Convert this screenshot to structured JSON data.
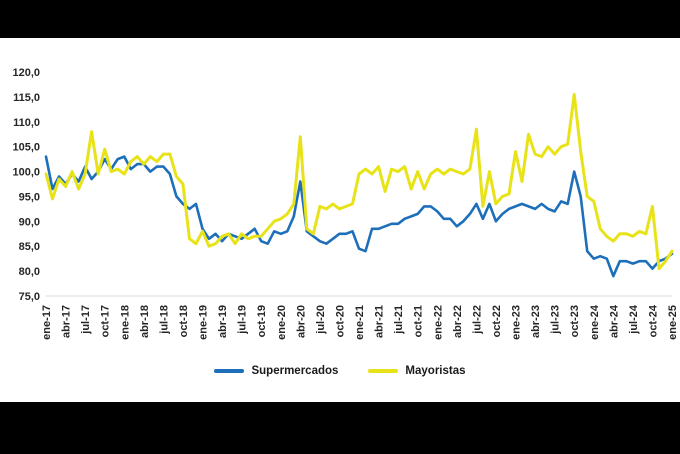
{
  "frame": {
    "top_bar_color": "#000000",
    "bottom_bar_color": "#000000",
    "chart_background": "#ffffff"
  },
  "chart_data": {
    "type": "line",
    "title": "",
    "xlabel": "",
    "ylabel": "",
    "ylim": [
      75,
      120
    ],
    "y_step": 5,
    "grid": false,
    "legend_position": "bottom",
    "y_tick_labels": [
      "75,0",
      "80,0",
      "85,0",
      "90,0",
      "95,0",
      "100,0",
      "105,0",
      "110,0",
      "115,0",
      "120,0"
    ],
    "tick_interval": 3,
    "x_tick_labels": [
      "ene-17",
      "abr-17",
      "jul-17",
      "oct-17",
      "ene-18",
      "abr-18",
      "jul-18",
      "oct-18",
      "ene-19",
      "abr-19",
      "jul-19",
      "oct-19",
      "ene-20",
      "abr-20",
      "jul-20",
      "oct-20",
      "ene-21",
      "abr-21",
      "jul-21",
      "oct-21",
      "ene-22",
      "abr-22",
      "jul-22",
      "oct-22",
      "ene-23",
      "abr-23",
      "jul-23",
      "oct-23",
      "ene-24",
      "abr-24",
      "jul-24",
      "oct-24",
      "ene-25"
    ],
    "series": [
      {
        "name": "Supermercados",
        "color": "#1E6FBA",
        "width": 2.6,
        "values": [
          103,
          96.5,
          99,
          97.5,
          99.5,
          98,
          101,
          98.5,
          100,
          102.5,
          100.5,
          102.5,
          103,
          100.5,
          101.5,
          101.5,
          100,
          101,
          101,
          99.5,
          95,
          93.5,
          92.5,
          93.5,
          88.5,
          86.5,
          87.5,
          86,
          87.5,
          87,
          86.5,
          87.5,
          88.5,
          86,
          85.5,
          88,
          87.5,
          88,
          91,
          98,
          88,
          87,
          86,
          85.5,
          86.5,
          87.5,
          87.5,
          88,
          84.5,
          84,
          88.5,
          88.5,
          89,
          89.5,
          89.5,
          90.5,
          91,
          91.5,
          93,
          93,
          92,
          90.5,
          90.5,
          89,
          90,
          91.5,
          93.5,
          90.5,
          93.5,
          90,
          91.5,
          92.5,
          93,
          93.5,
          93,
          92.5,
          93.5,
          92.5,
          92,
          94,
          93.5,
          100,
          95,
          84,
          82.5,
          83,
          82.5,
          79,
          82,
          82,
          81.5,
          82,
          82,
          80.5,
          82,
          82.5,
          83.5
        ]
      },
      {
        "name": "Mayoristas",
        "color": "#E8E319",
        "width": 3,
        "values": [
          99.5,
          94.5,
          98.5,
          97,
          100,
          96.5,
          99.5,
          108,
          99.5,
          104.5,
          100,
          100.5,
          99.5,
          102,
          103,
          101.5,
          103,
          102,
          103.5,
          103.5,
          99,
          97.5,
          86.5,
          85.5,
          88,
          85,
          85.5,
          87,
          87.5,
          85.5,
          87.5,
          86.5,
          87,
          87,
          88.5,
          90,
          90.5,
          91.5,
          93.5,
          107,
          88.5,
          87.5,
          93,
          92.5,
          93.5,
          92.5,
          93,
          93.5,
          99.5,
          100.5,
          99.5,
          101,
          96,
          100.5,
          100,
          101,
          96.5,
          100,
          96.5,
          99.5,
          100.5,
          99.5,
          100.5,
          100,
          99.5,
          100.5,
          108.5,
          93,
          100,
          93.5,
          95,
          95.5,
          104,
          98,
          107.5,
          103.5,
          103,
          105,
          103.5,
          105,
          105.5,
          115.5,
          104,
          95,
          94,
          88.5,
          87,
          86,
          87.5,
          87.5,
          87,
          88,
          87.5,
          93,
          80.5,
          82,
          84
        ]
      }
    ]
  }
}
